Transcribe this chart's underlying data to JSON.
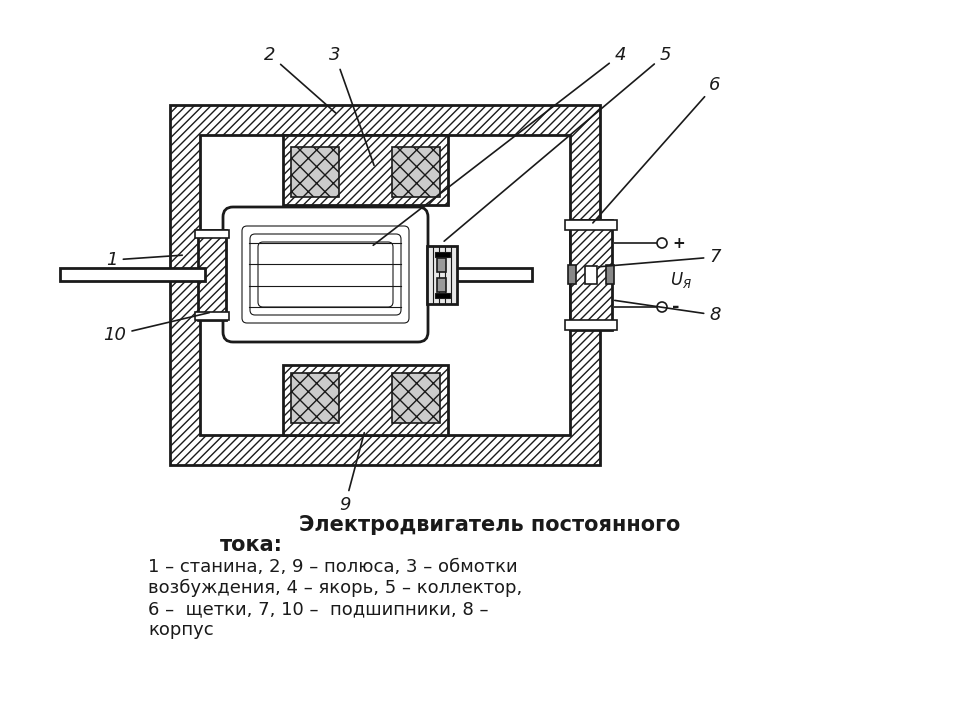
{
  "title": "Электродвигатель постоянного",
  "caption_line2": "тока:",
  "caption_line3": "1 – станина, 2, 9 – полюса, 3 – обмотки",
  "caption_line4": "возбуждения, 4 – якорь, 5 – коллектор,",
  "caption_line5": "6 –  щетки, 7, 10 –  подшипники, 8 –",
  "caption_line6": "корпус",
  "line_color": "#1a1a1a",
  "label_fontsize": 13,
  "caption_fontsize": 14
}
